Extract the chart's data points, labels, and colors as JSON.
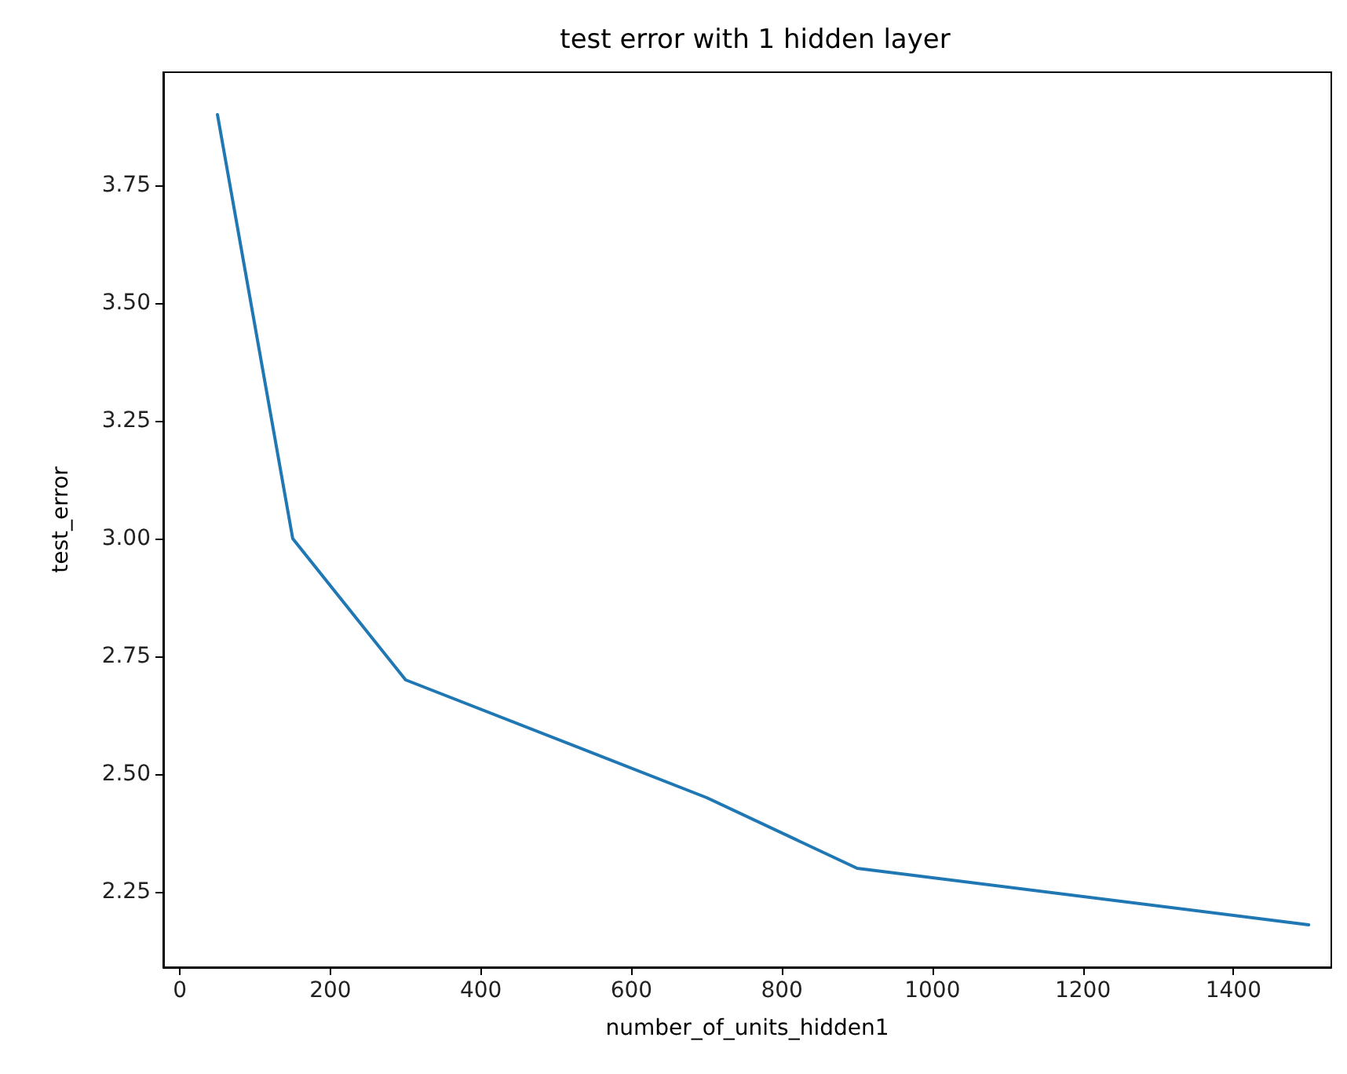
{
  "chart_data": {
    "type": "line",
    "title": "test error with 1 hidden layer",
    "xlabel": "number_of_units_hidden1",
    "ylabel": "test_error",
    "x": [
      50,
      150,
      300,
      700,
      900,
      1500
    ],
    "series": [
      {
        "color": "#1f77b4",
        "values": [
          3.9,
          3.0,
          2.7,
          2.45,
          2.3,
          2.18
        ]
      }
    ],
    "xlim": [
      -22,
      1530
    ],
    "xticks": [
      0,
      200,
      400,
      600,
      800,
      1000,
      1200,
      1400
    ],
    "ylim": [
      2.09,
      3.99
    ],
    "yticks": [
      2.25,
      {
        "value": 2.5,
        "label": "2.50"
      },
      {
        "value": 2.75,
        "label": "2.75"
      },
      {
        "value": 3.0,
        "label": "3.00"
      },
      {
        "value": 3.25,
        "label": "3.25"
      },
      {
        "value": 3.5,
        "label": "3.50"
      },
      {
        "value": 3.75,
        "label": "3.75"
      }
    ],
    "grid": false,
    "marker": "none",
    "line_style": "solid"
  }
}
